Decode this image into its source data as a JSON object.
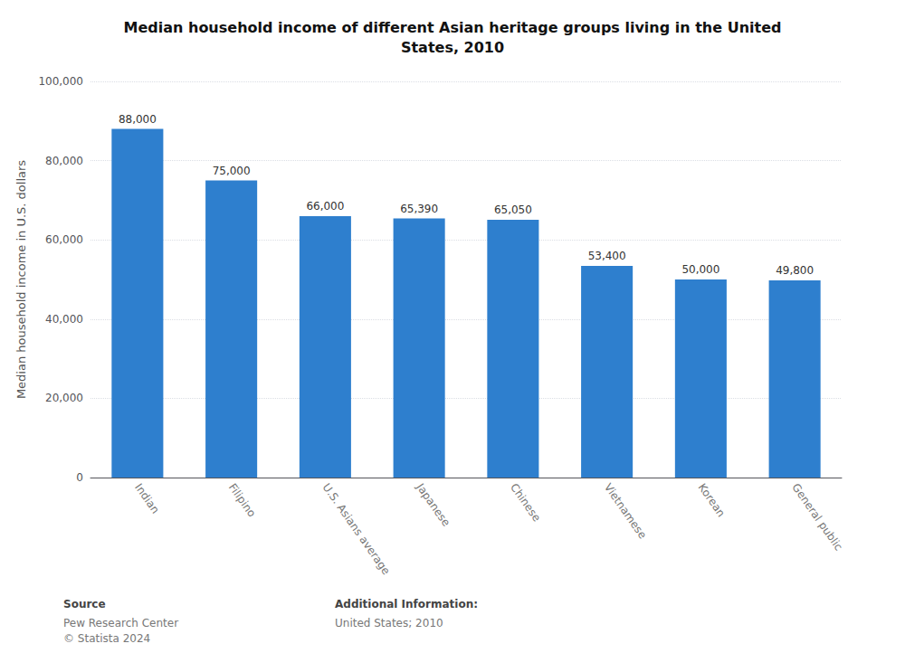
{
  "chart_data": {
    "type": "bar",
    "title": "Median household income of different Asian heritage groups living in the United\nStates, 2010",
    "categories": [
      "Indian",
      "Filipino",
      "U.S. Asians average",
      "Japanese",
      "Chinese",
      "Vietnamese",
      "Korean",
      "General public"
    ],
    "values": [
      88000,
      75000,
      66000,
      65390,
      65050,
      53400,
      50000,
      49800
    ],
    "value_labels": [
      "88,000",
      "75,000",
      "66,000",
      "65,390",
      "65,050",
      "53,400",
      "50,000",
      "49,800"
    ],
    "data_labels": true,
    "color": "#2e7fce",
    "ylabel": "Median household income in U.S. dollars",
    "ylim": [
      0,
      100000
    ],
    "yticks": [
      0,
      {
        "value": 20000,
        "label": "20,000"
      },
      {
        "value": 40000,
        "label": "40,000"
      },
      {
        "value": 60000,
        "label": "60,000"
      },
      {
        "value": 80000,
        "label": "80,000"
      },
      {
        "value": 100000,
        "label": "100,000"
      }
    ],
    "grid": true,
    "annotations": [
      {
        "heading": "Source",
        "text": "Pew Research Center\n© Statista 2024"
      },
      {
        "heading": "Additional Information:",
        "text": "United States; 2010"
      }
    ]
  }
}
